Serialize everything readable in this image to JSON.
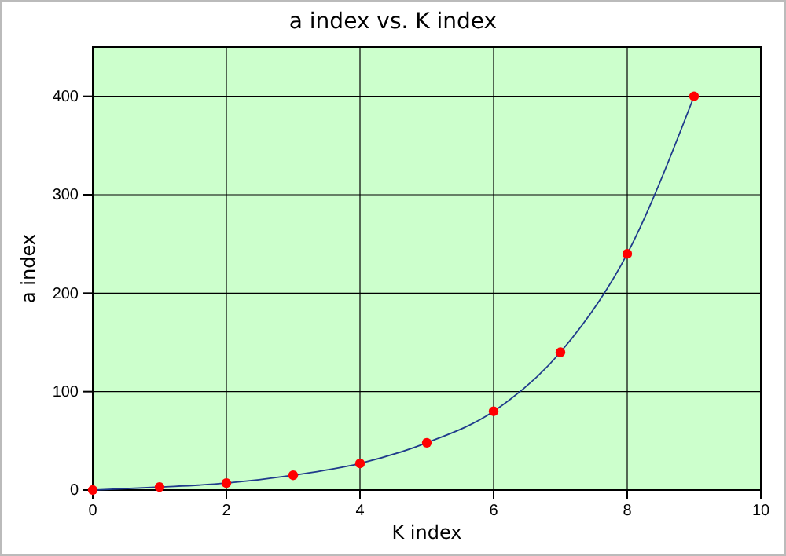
{
  "chart_data": {
    "type": "line",
    "title": "a index vs. K index",
    "xlabel": "K index",
    "ylabel": "a index",
    "x": [
      0,
      1,
      2,
      3,
      4,
      5,
      6,
      7,
      8,
      9
    ],
    "series": [
      {
        "color": "#1f3b8c",
        "marker": "none",
        "values": [
          0,
          3,
          7,
          15,
          27,
          48,
          80,
          140,
          240,
          400
        ]
      },
      {
        "type": "scatter",
        "color": "#ff0000",
        "marker": "circle",
        "values": [
          0,
          3,
          7,
          15,
          27,
          48,
          80,
          140,
          240,
          400
        ]
      }
    ],
    "xlim": [
      0,
      10
    ],
    "xticks": [
      0,
      2,
      4,
      6,
      8,
      10
    ],
    "ylim": [
      0,
      450
    ],
    "yticks": [
      0,
      100,
      200,
      300,
      400
    ],
    "grid": true,
    "line_style": "solid"
  }
}
